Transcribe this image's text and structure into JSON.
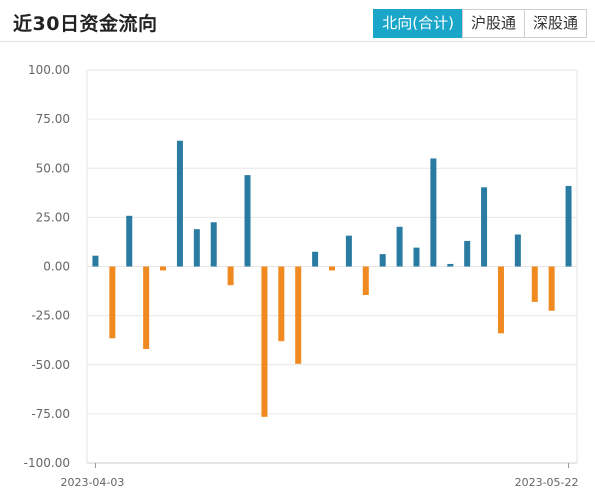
{
  "header": {
    "title": "近30日资金流向",
    "tabs": [
      {
        "label": "北向(合计)",
        "active": true
      },
      {
        "label": "沪股通",
        "active": false
      },
      {
        "label": "深股通",
        "active": false
      }
    ]
  },
  "colors": {
    "positive": "#2a7ba1",
    "negative": "#f0891f",
    "tab_active": "#1aa6c8"
  },
  "chart_data": {
    "type": "bar",
    "title": "",
    "xlabel": "",
    "ylabel": "",
    "ylim": [
      -100,
      100
    ],
    "yticks": [
      100,
      75,
      50,
      25,
      0,
      -25,
      -50,
      -75,
      -100
    ],
    "ytick_labels": [
      "100.00",
      "75.00",
      "50.00",
      "25.00",
      "0.00",
      "-25.00",
      "-50.00",
      "-75.00",
      "-100.00"
    ],
    "grid": true,
    "start_label": "2023-04-03",
    "end_label": "2023-05-22",
    "values": [
      5.5,
      -36.5,
      25.8,
      -42.0,
      -2.0,
      64.0,
      19.0,
      22.5,
      -9.5,
      46.5,
      -76.5,
      -38.0,
      -49.5,
      7.5,
      -2.0,
      15.7,
      -14.5,
      6.3,
      20.2,
      9.6,
      55.0,
      1.3,
      13.0,
      40.3,
      -34.0,
      16.3,
      -18.0,
      -22.5,
      41.0
    ]
  }
}
